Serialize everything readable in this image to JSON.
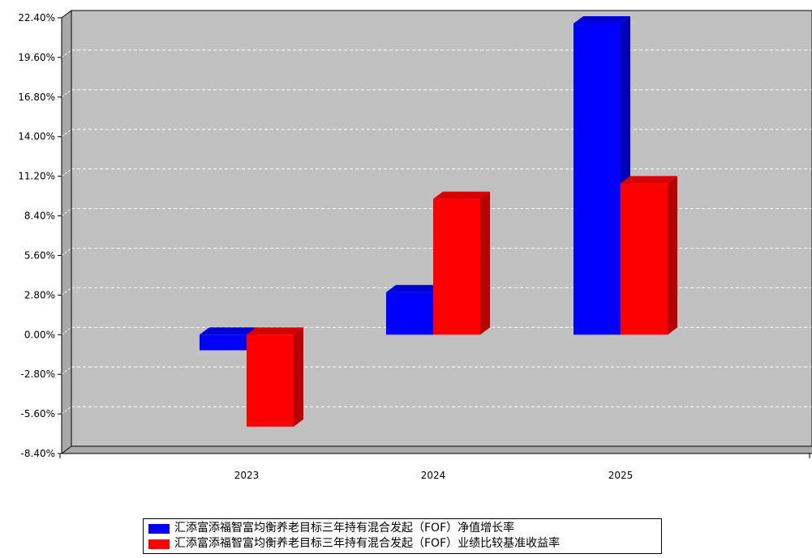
{
  "chart_data": {
    "type": "bar",
    "categories": [
      "2023",
      "2024",
      "2025"
    ],
    "series": [
      {
        "name": "汇添富添福智富均衡养老目标三年持有混合发起（FOF）净值增长率",
        "color": "#0000ff",
        "values": [
          -1.1,
          3.0,
          22.0
        ]
      },
      {
        "name": "汇添富添福智富均衡养老目标三年持有混合发起（FOF）业绩比较基准收益率",
        "color": "#ff0000",
        "values": [
          -6.5,
          9.6,
          10.7
        ]
      }
    ],
    "ylim": [
      -8.4,
      22.4
    ],
    "yticks": [
      "22.40%",
      "19.60%",
      "16.80%",
      "14.00%",
      "11.20%",
      "8.40%",
      "5.60%",
      "2.80%",
      "0.00%",
      "-2.80%",
      "-5.60%",
      "-8.40%"
    ],
    "ytick_values": [
      22.4,
      19.6,
      16.8,
      14.0,
      11.2,
      8.4,
      5.6,
      2.8,
      0.0,
      -2.8,
      -5.6,
      -8.4
    ],
    "grid": true,
    "legend_position": "bottom",
    "plot_background": "#c0c0c0"
  }
}
